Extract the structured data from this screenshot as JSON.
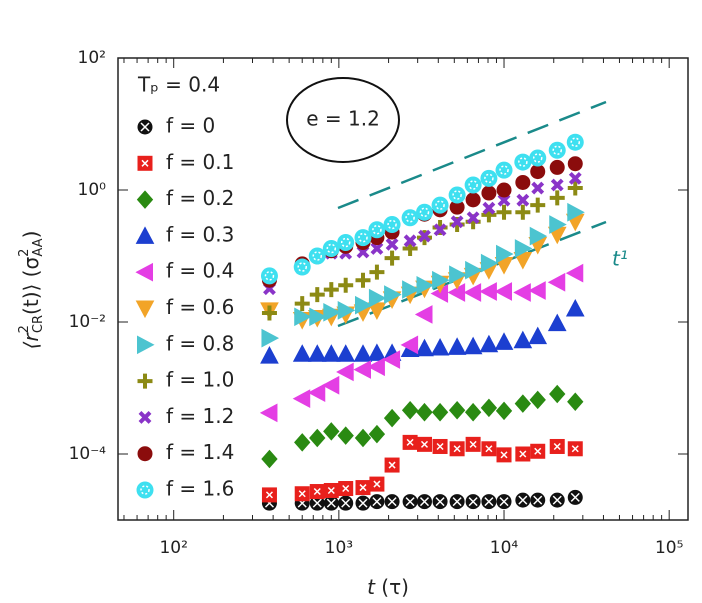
{
  "chart_data": {
    "type": "scatter",
    "log_x": true,
    "log_y": true,
    "xlabel_parts": [
      "t",
      " (τ)"
    ],
    "ylabel_parts": [
      "⟨r",
      "2",
      "CR",
      "(t)⟩ (σ",
      "2",
      "AA",
      ")"
    ],
    "legend_title": "Tₚ = 0.4",
    "legend_location": "upper left",
    "annotations": [
      "e = 1.2",
      "t¹"
    ],
    "xlim": [
      46,
      130000
    ],
    "ylim": [
      1e-05,
      100
    ],
    "xticks": [
      {
        "value": 100,
        "label": "10²"
      },
      {
        "value": 1000,
        "label": "10³"
      },
      {
        "value": 10000,
        "label": "10⁴"
      },
      {
        "value": 100000,
        "label": "10⁵"
      }
    ],
    "yticks": [
      {
        "value": 0.0001,
        "label": "10⁻⁴"
      },
      {
        "value": 0.01,
        "label": "10⁻²"
      },
      {
        "value": 1,
        "label": "10⁰"
      },
      {
        "value": 100,
        "label": "10²"
      }
    ],
    "x": [
      380,
      600,
      740,
      900,
      1100,
      1400,
      1700,
      2100,
      2700,
      3300,
      4100,
      5200,
      6500,
      8100,
      10000,
      13000,
      16000,
      21000,
      27000
    ],
    "series": [
      {
        "name": "f = 0",
        "color": "#111111",
        "marker": "circle-cross",
        "values": [
          1.8e-05,
          1.8e-05,
          1.8e-05,
          1.8e-05,
          1.8e-05,
          1.8e-05,
          1.9e-05,
          1.9e-05,
          1.9e-05,
          1.9e-05,
          1.9e-05,
          1.9e-05,
          1.9e-05,
          1.9e-05,
          1.9e-05,
          2e-05,
          2e-05,
          2e-05,
          2.2e-05
        ]
      },
      {
        "name": "f = 0.1",
        "color": "#e8201c",
        "marker": "square-dot",
        "values": [
          2.4e-05,
          2.5e-05,
          2.7e-05,
          2.8e-05,
          3e-05,
          3.1e-05,
          3.5e-05,
          6.8e-05,
          0.00015,
          0.00014,
          0.00013,
          0.00012,
          0.00014,
          0.00012,
          9.7e-05,
          0.0001,
          0.00011,
          0.00013,
          0.00012
        ]
      },
      {
        "name": "f = 0.2",
        "color": "#2a8a12",
        "marker": "diamond",
        "values": [
          8.4e-05,
          0.00015,
          0.000175,
          0.00022,
          0.00019,
          0.000175,
          0.0002,
          0.00035,
          0.00046,
          0.00043,
          0.00043,
          0.00046,
          0.00043,
          0.0005,
          0.00045,
          0.00058,
          0.00066,
          0.00081,
          0.00062
        ]
      },
      {
        "name": "f = 0.3",
        "color": "#1c3fd0",
        "marker": "triangle-up",
        "values": [
          0.0031,
          0.0033,
          0.0033,
          0.0033,
          0.0033,
          0.0033,
          0.0034,
          0.0034,
          0.0039,
          0.004,
          0.0041,
          0.0042,
          0.0043,
          0.0046,
          0.005,
          0.0053,
          0.0061,
          0.0096,
          0.016
        ]
      },
      {
        "name": "f = 0.4",
        "color": "#e43ee4",
        "marker": "triangle-left",
        "values": [
          0.00042,
          0.00069,
          0.00085,
          0.0011,
          0.00175,
          0.0019,
          0.0021,
          0.0027,
          0.0045,
          0.013,
          0.027,
          0.028,
          0.028,
          0.029,
          0.029,
          0.028,
          0.03,
          0.04,
          0.055
        ]
      },
      {
        "name": "f = 0.6",
        "color": "#f2a428",
        "marker": "triangle-down",
        "values": [
          0.015,
          0.0107,
          0.0115,
          0.012,
          0.013,
          0.014,
          0.015,
          0.022,
          0.026,
          0.032,
          0.038,
          0.043,
          0.05,
          0.061,
          0.073,
          0.087,
          0.147,
          0.21,
          0.33
        ]
      },
      {
        "name": "f = 0.8",
        "color": "#4cc4d0",
        "marker": "triangle-right",
        "values": [
          0.0057,
          0.012,
          0.012,
          0.014,
          0.015,
          0.018,
          0.023,
          0.026,
          0.031,
          0.036,
          0.043,
          0.052,
          0.061,
          0.078,
          0.107,
          0.13,
          0.2,
          0.3,
          0.46
        ]
      },
      {
        "name": "f = 1.0",
        "color": "#8c8a14",
        "marker": "plus",
        "values": [
          0.0137,
          0.019,
          0.026,
          0.031,
          0.036,
          0.043,
          0.057,
          0.093,
          0.13,
          0.19,
          0.27,
          0.3,
          0.33,
          0.42,
          0.46,
          0.46,
          0.59,
          0.76,
          1.07
        ]
      },
      {
        "name": "f = 1.2",
        "color": "#8a34c8",
        "marker": "cross",
        "values": [
          0.032,
          0.073,
          0.1,
          0.11,
          0.11,
          0.115,
          0.13,
          0.15,
          0.17,
          0.2,
          0.25,
          0.33,
          0.38,
          0.53,
          0.7,
          0.7,
          1.07,
          1.19,
          1.5
        ]
      },
      {
        "name": "f = 1.4",
        "color": "#8b0c0c",
        "marker": "circle",
        "values": [
          0.043,
          0.076,
          0.097,
          0.12,
          0.14,
          0.16,
          0.19,
          0.23,
          0.38,
          0.43,
          0.5,
          0.55,
          0.71,
          0.9,
          1.0,
          1.3,
          1.9,
          2.2,
          2.5
        ]
      },
      {
        "name": "f = 1.6",
        "color": "#3ee0f0",
        "marker": "circle-dot",
        "values": [
          0.05,
          0.068,
          0.1,
          0.13,
          0.16,
          0.19,
          0.25,
          0.3,
          0.38,
          0.46,
          0.59,
          0.84,
          1.19,
          1.5,
          2.0,
          2.65,
          3.05,
          4.0,
          5.3
        ]
      }
    ]
  }
}
